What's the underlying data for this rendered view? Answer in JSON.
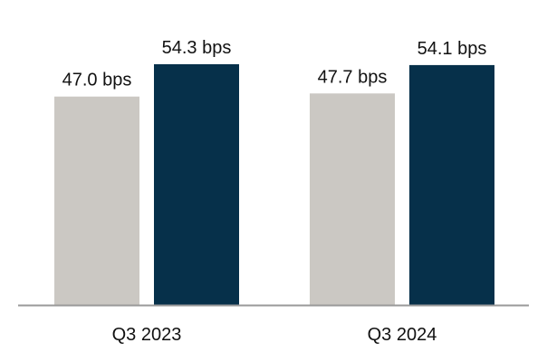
{
  "chart_data": {
    "type": "bar",
    "title": "",
    "xlabel": "",
    "ylabel": "",
    "categories": [
      "Q3 2023",
      "Q3 2024"
    ],
    "series": [
      {
        "color": "#cbc8c3",
        "values": [
          47.0,
          47.7
        ],
        "labels": [
          "47.0 bps",
          "47.7 bps"
        ]
      },
      {
        "color": "#06304a",
        "values": [
          54.3,
          54.1
        ],
        "labels": [
          "54.3 bps",
          "54.1 bps"
        ]
      }
    ],
    "axis_color": "#999999",
    "grid": false,
    "legend": "none"
  }
}
